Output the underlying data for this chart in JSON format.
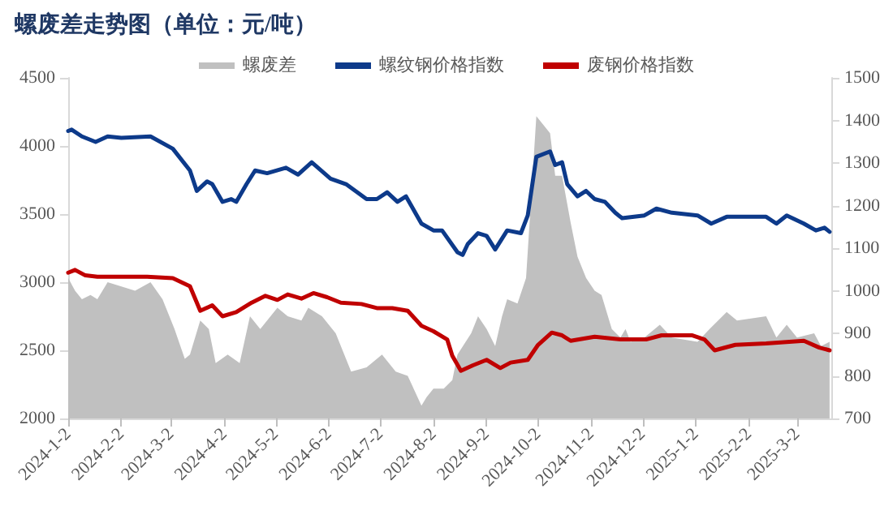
{
  "chart_data": {
    "type": "line",
    "title": "螺废差走势图（单位：元/吨）",
    "xlim": [
      "2024-01-02",
      "2025-03-22"
    ],
    "xticks": [
      {
        "value": "2024-01-02",
        "label": "2024-1-2"
      },
      {
        "value": "2024-02-02",
        "label": "2024-2-2"
      },
      {
        "value": "2024-03-02",
        "label": "2024-3-2"
      },
      {
        "value": "2024-04-02",
        "label": "2024-4-2"
      },
      {
        "value": "2024-05-02",
        "label": "2024-5-2"
      },
      {
        "value": "2024-06-02",
        "label": "2024-6-2"
      },
      {
        "value": "2024-07-02",
        "label": "2024-7-2"
      },
      {
        "value": "2024-08-02",
        "label": "2024-8-2"
      },
      {
        "value": "2024-09-02",
        "label": "2024-9-2"
      },
      {
        "value": "2024-10-02",
        "label": "2024-10-2"
      },
      {
        "value": "2024-11-02",
        "label": "2024-11-2"
      },
      {
        "value": "2024-12-02",
        "label": "2024-12-2"
      },
      {
        "value": "2025-01-02",
        "label": "2025-1-2"
      },
      {
        "value": "2025-02-02",
        "label": "2025-2-2"
      },
      {
        "value": "2025-03-02",
        "label": "2025-3-2"
      }
    ],
    "ylim": [
      2000,
      4500
    ],
    "yticks": [
      2000,
      2500,
      3000,
      3500,
      4000,
      4500
    ],
    "y2lim": [
      700,
      1500
    ],
    "y2ticks": [
      700,
      800,
      900,
      1000,
      1100,
      1200,
      1300,
      1400,
      1500
    ],
    "grid": false,
    "legend": "top",
    "marker": "none",
    "line_style": "solid",
    "series": [
      {
        "name": "螺废差",
        "type": "area",
        "axis": "y2",
        "color": "#c0c0c0",
        "x": [
          "2024-01-02",
          "2024-01-06",
          "2024-01-10",
          "2024-01-15",
          "2024-01-19",
          "2024-01-25",
          "2024-02-02",
          "2024-02-10",
          "2024-02-19",
          "2024-02-26",
          "2024-03-04",
          "2024-03-10",
          "2024-03-13",
          "2024-03-19",
          "2024-03-24",
          "2024-03-28",
          "2024-04-04",
          "2024-04-11",
          "2024-04-17",
          "2024-04-23",
          "2024-05-03",
          "2024-05-09",
          "2024-05-17",
          "2024-05-21",
          "2024-05-29",
          "2024-06-06",
          "2024-06-15",
          "2024-06-24",
          "2024-07-03",
          "2024-07-11",
          "2024-07-18",
          "2024-07-26",
          "2024-07-29",
          "2024-08-02",
          "2024-08-08",
          "2024-08-13",
          "2024-08-16",
          "2024-08-24",
          "2024-08-28",
          "2024-09-02",
          "2024-09-07",
          "2024-09-11",
          "2024-09-14",
          "2024-09-20",
          "2024-09-25",
          "2024-10-01",
          "2024-10-09",
          "2024-10-12",
          "2024-10-16",
          "2024-10-21",
          "2024-10-25",
          "2024-10-30",
          "2024-11-04",
          "2024-11-08",
          "2024-11-14",
          "2024-11-19",
          "2024-11-22",
          "2024-11-25",
          "2024-12-03",
          "2024-12-12",
          "2024-12-19",
          "2025-01-03",
          "2025-01-10",
          "2025-01-20",
          "2025-01-26",
          "2025-02-12",
          "2025-02-18",
          "2025-02-24",
          "2025-03-02",
          "2025-03-12",
          "2025-03-16",
          "2025-03-21"
        ],
        "values": [
          1030,
          1000,
          980,
          990,
          980,
          1020,
          1010,
          1000,
          1020,
          980,
          910,
          840,
          850,
          930,
          910,
          830,
          850,
          830,
          940,
          910,
          960,
          940,
          930,
          960,
          940,
          900,
          810,
          820,
          850,
          810,
          800,
          730,
          750,
          770,
          770,
          790,
          850,
          900,
          940,
          910,
          870,
          940,
          980,
          970,
          1030,
          1410,
          1370,
          1270,
          1270,
          1160,
          1080,
          1030,
          1000,
          990,
          910,
          890,
          910,
          880,
          890,
          920,
          890,
          880,
          910,
          950,
          930,
          940,
          890,
          920,
          890,
          900,
          870,
          880
        ]
      },
      {
        "name": "螺纹钢价格指数",
        "color": "#0d3a8a",
        "x": [
          "2024-01-02",
          "2024-01-04",
          "2024-01-10",
          "2024-01-18",
          "2024-01-25",
          "2024-02-02",
          "2024-02-19",
          "2024-03-03",
          "2024-03-13",
          "2024-03-17",
          "2024-03-23",
          "2024-03-26",
          "2024-04-01",
          "2024-04-06",
          "2024-04-09",
          "2024-04-15",
          "2024-04-20",
          "2024-04-27",
          "2024-05-08",
          "2024-05-15",
          "2024-05-23",
          "2024-06-03",
          "2024-06-12",
          "2024-06-24",
          "2024-06-30",
          "2024-07-06",
          "2024-07-12",
          "2024-07-17",
          "2024-07-26",
          "2024-08-02",
          "2024-08-07",
          "2024-08-16",
          "2024-08-19",
          "2024-08-22",
          "2024-08-28",
          "2024-09-02",
          "2024-09-07",
          "2024-09-14",
          "2024-09-22",
          "2024-09-26",
          "2024-10-01",
          "2024-10-09",
          "2024-10-12",
          "2024-10-16",
          "2024-10-19",
          "2024-10-25",
          "2024-10-30",
          "2024-11-04",
          "2024-11-10",
          "2024-11-16",
          "2024-11-20",
          "2024-12-03",
          "2024-12-10",
          "2024-12-19",
          "2025-01-03",
          "2025-01-11",
          "2025-01-20",
          "2025-02-12",
          "2025-02-18",
          "2025-02-24",
          "2025-03-06",
          "2025-03-13",
          "2025-03-18",
          "2025-03-21"
        ],
        "values": [
          4110,
          4120,
          4070,
          4030,
          4070,
          4060,
          4070,
          3980,
          3820,
          3670,
          3740,
          3720,
          3590,
          3610,
          3590,
          3720,
          3820,
          3800,
          3840,
          3790,
          3880,
          3760,
          3720,
          3610,
          3610,
          3660,
          3590,
          3630,
          3430,
          3380,
          3380,
          3220,
          3200,
          3280,
          3360,
          3340,
          3240,
          3380,
          3360,
          3490,
          3920,
          3960,
          3860,
          3880,
          3720,
          3630,
          3670,
          3610,
          3590,
          3510,
          3470,
          3490,
          3540,
          3510,
          3490,
          3430,
          3480,
          3480,
          3430,
          3490,
          3430,
          3380,
          3400,
          3370
        ]
      },
      {
        "name": "废钢价格指数",
        "color": "#c00000",
        "x": [
          "2024-01-02",
          "2024-01-06",
          "2024-01-12",
          "2024-01-19",
          "2024-02-02",
          "2024-02-17",
          "2024-03-03",
          "2024-03-13",
          "2024-03-19",
          "2024-03-26",
          "2024-04-01",
          "2024-04-09",
          "2024-04-18",
          "2024-04-26",
          "2024-05-03",
          "2024-05-09",
          "2024-05-17",
          "2024-05-24",
          "2024-06-01",
          "2024-06-09",
          "2024-06-21",
          "2024-06-30",
          "2024-07-09",
          "2024-07-18",
          "2024-07-26",
          "2024-08-02",
          "2024-08-10",
          "2024-08-13",
          "2024-08-18",
          "2024-08-25",
          "2024-09-02",
          "2024-09-10",
          "2024-09-16",
          "2024-09-26",
          "2024-10-02",
          "2024-10-10",
          "2024-10-16",
          "2024-10-21",
          "2024-11-04",
          "2024-11-19",
          "2024-12-04",
          "2024-12-13",
          "2024-12-31",
          "2025-01-07",
          "2025-01-13",
          "2025-01-25",
          "2025-02-12",
          "2025-03-06",
          "2025-03-15",
          "2025-03-21"
        ],
        "values": [
          3070,
          3090,
          3050,
          3040,
          3040,
          3040,
          3030,
          2970,
          2790,
          2830,
          2750,
          2780,
          2850,
          2900,
          2870,
          2910,
          2880,
          2920,
          2890,
          2850,
          2840,
          2810,
          2810,
          2790,
          2680,
          2640,
          2580,
          2460,
          2350,
          2390,
          2430,
          2370,
          2410,
          2430,
          2540,
          2630,
          2610,
          2570,
          2600,
          2580,
          2580,
          2610,
          2610,
          2580,
          2500,
          2540,
          2550,
          2570,
          2520,
          2500
        ]
      }
    ]
  }
}
